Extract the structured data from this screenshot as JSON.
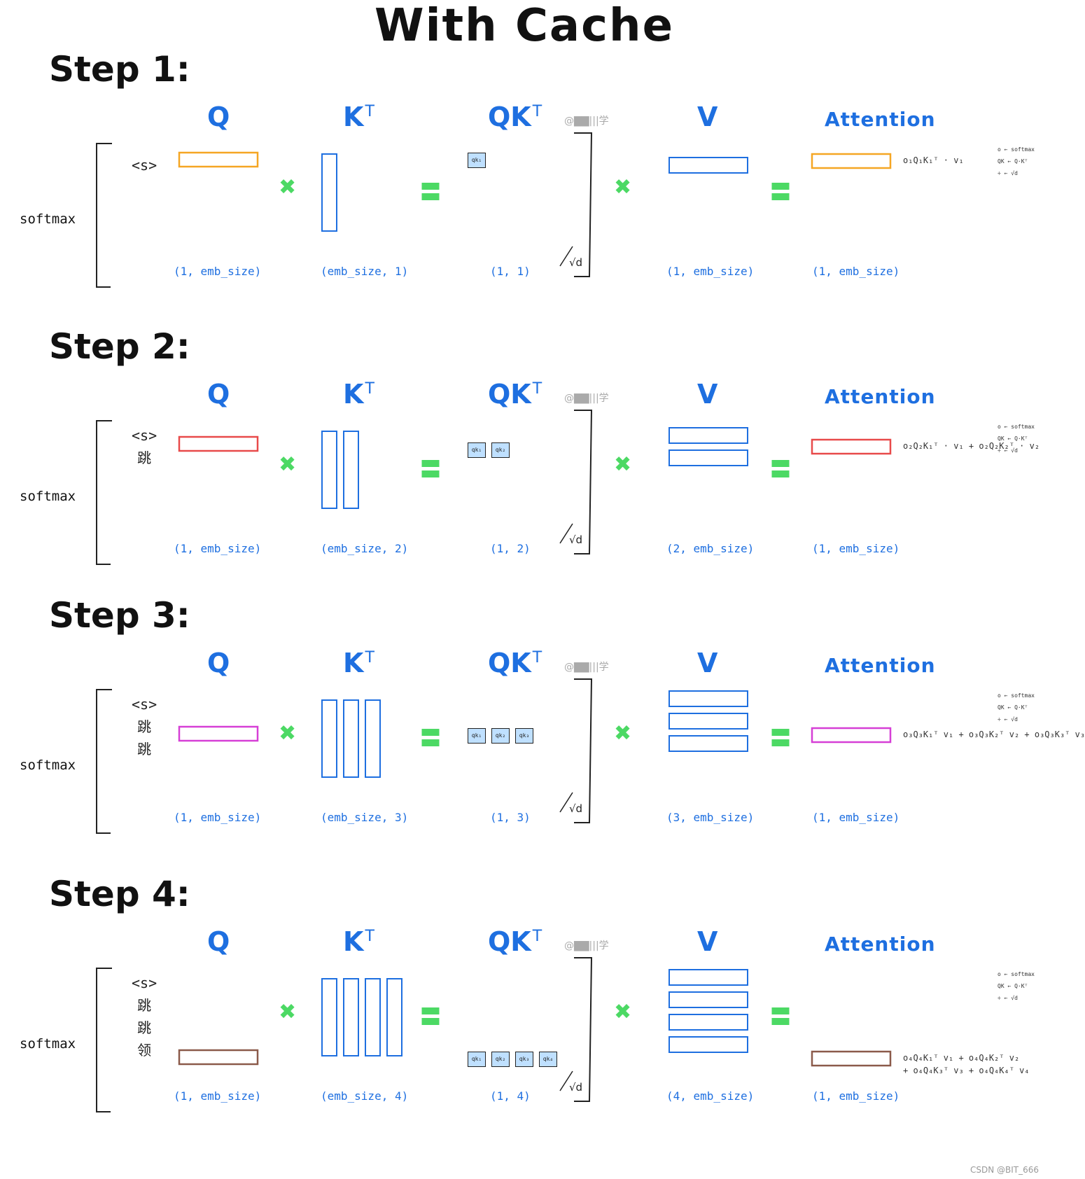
{
  "title": "With Cache",
  "headers": {
    "q": "Q",
    "kt": "K",
    "kt_sup": "T",
    "qkt": "QK",
    "qkt_sup": "T",
    "v": "V",
    "attention": "Attention"
  },
  "softmax_label": "softmax",
  "watermark_text": "@▇▇|||学",
  "sqrt_label": "√d",
  "footer": "CSDN @BIT_666",
  "colors": {
    "blue": "#1e6fe0",
    "green": "#4cd964"
  },
  "steps": [
    {
      "label": "Step 1:",
      "tokens": [
        "<s>"
      ],
      "q_color": "#f5a623",
      "dims": {
        "q": "(1, emb_size)",
        "kt": "(emb_size, 1)",
        "qkt": "(1, 1)",
        "v": "(1, emb_size)",
        "att": "(1, emb_size)"
      },
      "n": 1,
      "att_note": [
        "o₁Q₁K₁ᵀ · v₁"
      ]
    },
    {
      "label": "Step 2:",
      "tokens": [
        "<s>",
        "跳"
      ],
      "q_color": "#e84a4a",
      "dims": {
        "q": "(1, emb_size)",
        "kt": "(emb_size, 2)",
        "qkt": "(1, 2)",
        "v": "(2, emb_size)",
        "att": "(1, emb_size)"
      },
      "n": 2,
      "att_note": [
        "o₂Q₂K₁ᵀ · v₁ + o₂Q₂K₂ᵀ · v₂"
      ]
    },
    {
      "label": "Step 3:",
      "tokens": [
        "<s>",
        "跳",
        "跳"
      ],
      "q_color": "#d63fd6",
      "dims": {
        "q": "(1, emb_size)",
        "kt": "(emb_size, 3)",
        "qkt": "(1, 3)",
        "v": "(3, emb_size)",
        "att": "(1, emb_size)"
      },
      "n": 3,
      "att_note": [
        "o₃Q₃K₁ᵀ v₁ + o₃Q₃K₂ᵀ v₂ + o₃Q₃K₃ᵀ v₃"
      ]
    },
    {
      "label": "Step 4:",
      "tokens": [
        "<s>",
        "跳",
        "跳",
        "领"
      ],
      "q_color": "#8b5a4a",
      "dims": {
        "q": "(1, emb_size)",
        "kt": "(emb_size, 4)",
        "qkt": "(1, 4)",
        "v": "(4, emb_size)",
        "att": "(1, emb_size)"
      },
      "n": 4,
      "att_note": [
        "o₄Q₄K₁ᵀ v₁ + o₄Q₄K₂ᵀ v₂",
        "+ o₄Q₄K₃ᵀ v₃ + o₄Q₄K₄ᵀ v₄"
      ]
    }
  ],
  "side_notes": [
    "o ← softmax",
    "QK ← Q·Kᵀ",
    "÷ ← √d"
  ],
  "qk_cell_labels": [
    "qk₁",
    "qk₂",
    "qk₃",
    "qk₄"
  ]
}
